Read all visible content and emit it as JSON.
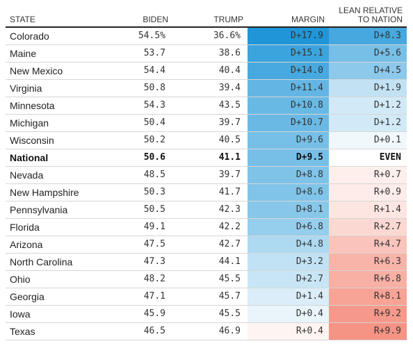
{
  "headers": {
    "state": "STATE",
    "biden": "BIDEN",
    "trump": "TRUMP",
    "margin": "MARGIN",
    "lean_line1": "LEAN RELATIVE",
    "lean_line2": "TO NATION"
  },
  "colors": {
    "dem_strong": "#1f96d8",
    "rep_strong": "#f58e7e"
  },
  "rows": [
    {
      "state": "Colorado",
      "biden": "54.5%",
      "trump": "36.6%",
      "margin": "D+17.9",
      "lean": "D+8.3",
      "margin_value": 17.9,
      "lean_value": 8.3
    },
    {
      "state": "Maine",
      "biden": "53.7",
      "trump": "38.6",
      "margin": "D+15.1",
      "lean": "D+5.6",
      "margin_value": 15.1,
      "lean_value": 5.6
    },
    {
      "state": "New Mexico",
      "biden": "54.4",
      "trump": "40.4",
      "margin": "D+14.0",
      "lean": "D+4.5",
      "margin_value": 14.0,
      "lean_value": 4.5
    },
    {
      "state": "Virginia",
      "biden": "50.8",
      "trump": "39.4",
      "margin": "D+11.4",
      "lean": "D+1.9",
      "margin_value": 11.4,
      "lean_value": 1.9
    },
    {
      "state": "Minnesota",
      "biden": "54.3",
      "trump": "43.5",
      "margin": "D+10.8",
      "lean": "D+1.2",
      "margin_value": 10.8,
      "lean_value": 1.2
    },
    {
      "state": "Michigan",
      "biden": "50.4",
      "trump": "39.7",
      "margin": "D+10.7",
      "lean": "D+1.2",
      "margin_value": 10.7,
      "lean_value": 1.2
    },
    {
      "state": "Wisconsin",
      "biden": "50.2",
      "trump": "40.5",
      "margin": "D+9.6",
      "lean": "D+0.1",
      "margin_value": 9.6,
      "lean_value": 0.1
    },
    {
      "state": "National",
      "biden": "50.6",
      "trump": "41.1",
      "margin": "D+9.5",
      "lean": "EVEN",
      "margin_value": 9.5,
      "lean_value": 0,
      "national": true
    },
    {
      "state": "Nevada",
      "biden": "48.5",
      "trump": "39.7",
      "margin": "D+8.8",
      "lean": "R+0.7",
      "margin_value": 8.8,
      "lean_value": -0.7
    },
    {
      "state": "New Hampshire",
      "biden": "50.3",
      "trump": "41.7",
      "margin": "D+8.6",
      "lean": "R+0.9",
      "margin_value": 8.6,
      "lean_value": -0.9
    },
    {
      "state": "Pennsylvania",
      "biden": "50.5",
      "trump": "42.3",
      "margin": "D+8.1",
      "lean": "R+1.4",
      "margin_value": 8.1,
      "lean_value": -1.4
    },
    {
      "state": "Florida",
      "biden": "49.1",
      "trump": "42.2",
      "margin": "D+6.8",
      "lean": "R+2.7",
      "margin_value": 6.8,
      "lean_value": -2.7
    },
    {
      "state": "Arizona",
      "biden": "47.5",
      "trump": "42.7",
      "margin": "D+4.8",
      "lean": "R+4.7",
      "margin_value": 4.8,
      "lean_value": -4.7
    },
    {
      "state": "North Carolina",
      "biden": "47.3",
      "trump": "44.1",
      "margin": "D+3.2",
      "lean": "R+6.3",
      "margin_value": 3.2,
      "lean_value": -6.3
    },
    {
      "state": "Ohio",
      "biden": "48.2",
      "trump": "45.5",
      "margin": "D+2.7",
      "lean": "R+6.8",
      "margin_value": 2.7,
      "lean_value": -6.8
    },
    {
      "state": "Georgia",
      "biden": "47.1",
      "trump": "45.7",
      "margin": "D+1.4",
      "lean": "R+8.1",
      "margin_value": 1.4,
      "lean_value": -8.1
    },
    {
      "state": "Iowa",
      "biden": "45.9",
      "trump": "45.5",
      "margin": "D+0.4",
      "lean": "R+9.2",
      "margin_value": 0.4,
      "lean_value": -9.2
    },
    {
      "state": "Texas",
      "biden": "46.5",
      "trump": "46.9",
      "margin": "R+0.4",
      "lean": "R+9.9",
      "margin_value": -0.4,
      "lean_value": -9.9
    }
  ]
}
